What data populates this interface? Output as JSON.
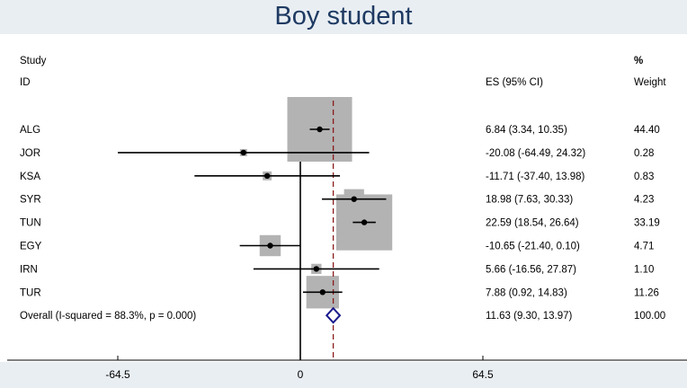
{
  "title": "Boy student",
  "headers": {
    "study": "Study",
    "id": "ID",
    "es": "ES (95% CI)",
    "weight_pct": "%",
    "weight": "Weight"
  },
  "chart_data": {
    "type": "forest",
    "x_ticks": [
      -64.5,
      0,
      64.5
    ],
    "x_tick_labels": [
      "-64.5",
      "0",
      "64.5"
    ],
    "xlim": [
      -110,
      145
    ],
    "null_line": 0,
    "studies": [
      {
        "id": "ALG",
        "es": 6.84,
        "lo": 3.34,
        "hi": 10.35,
        "weight": 44.4,
        "es_text": "6.84 (3.34, 10.35)",
        "w_text": "44.40"
      },
      {
        "id": "JOR",
        "es": -20.08,
        "lo": -64.49,
        "hi": 24.32,
        "weight": 0.28,
        "es_text": "-20.08 (-64.49, 24.32)",
        "w_text": "0.28"
      },
      {
        "id": "KSA",
        "es": -11.71,
        "lo": -37.4,
        "hi": 13.98,
        "weight": 0.83,
        "es_text": "-11.71 (-37.40, 13.98)",
        "w_text": "0.83"
      },
      {
        "id": "SYR",
        "es": 18.98,
        "lo": 7.63,
        "hi": 30.33,
        "weight": 4.23,
        "es_text": "18.98 (7.63, 30.33)",
        "w_text": "4.23"
      },
      {
        "id": "TUN",
        "es": 22.59,
        "lo": 18.54,
        "hi": 26.64,
        "weight": 33.19,
        "es_text": "22.59 (18.54, 26.64)",
        "w_text": "33.19"
      },
      {
        "id": "EGY",
        "es": -10.65,
        "lo": -21.4,
        "hi": 0.1,
        "weight": 4.71,
        "es_text": "-10.65 (-21.40, 0.10)",
        "w_text": "4.71"
      },
      {
        "id": "IRN",
        "es": 5.66,
        "lo": -16.56,
        "hi": 27.87,
        "weight": 1.1,
        "es_text": "5.66 (-16.56, 27.87)",
        "w_text": "1.10"
      },
      {
        "id": "TUR",
        "es": 7.88,
        "lo": 0.92,
        "hi": 14.83,
        "weight": 11.26,
        "es_text": "7.88 (0.92, 14.83)",
        "w_text": "11.26"
      }
    ],
    "overall": {
      "label": "Overall  (I-squared = 88.3%, p = 0.000)",
      "es": 11.63,
      "lo": 9.3,
      "hi": 13.97,
      "es_text": "11.63 (9.30, 13.97)",
      "w_text": "100.00"
    }
  },
  "colors": {
    "title": "#1e3a62",
    "band": "#e9eef3",
    "box": "#b3b3b3",
    "diamond": "#1a1a8c",
    "overall_line": "#8b1a1a"
  }
}
